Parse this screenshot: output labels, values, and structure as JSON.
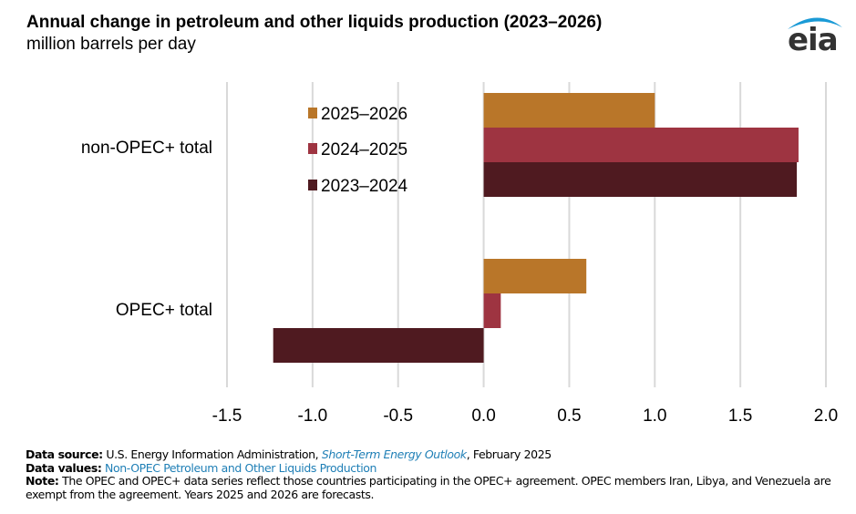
{
  "header": {
    "title": "Annual change in petroleum and other liquids production (2023–2026)",
    "subtitle": "million barrels per day",
    "logo_text": "eia",
    "logo_icon": "eia-arc-logo"
  },
  "colors": {
    "s2025_2026": "#b97629",
    "s2024_2025": "#9e3441",
    "s2023_2024": "#4f1a20",
    "grid": "#d9d9d9",
    "link": "#1f7fb6",
    "logo_arc": "#1a9ad6"
  },
  "chart_data": {
    "type": "bar",
    "orientation": "horizontal",
    "title": "Annual change in petroleum and other liquids production (2023–2026)",
    "subtitle": "million barrels per day",
    "xlabel": "",
    "ylabel": "",
    "categories": [
      "non-OPEC+ total",
      "OPEC+ total"
    ],
    "series": [
      {
        "name": "2025–2026",
        "color": "#b97629",
        "values": [
          1.0,
          0.6
        ]
      },
      {
        "name": "2024–2025",
        "color": "#9e3441",
        "values": [
          1.84,
          0.1
        ]
      },
      {
        "name": "2023–2024",
        "color": "#4f1a20",
        "values": [
          1.83,
          -1.23
        ]
      }
    ],
    "xlim": [
      -1.5,
      2.0
    ],
    "xticks": [
      -1.5,
      -1.0,
      -0.5,
      0.0,
      0.5,
      1.0,
      1.5,
      2.0
    ],
    "xtick_labels": [
      "-1.5",
      "-1.0",
      "-0.5",
      "0.0",
      "0.5",
      "1.0",
      "1.5",
      "2.0"
    ],
    "grid": "vertical",
    "legend_position": "top-center (inside plot, left of non-OPEC+ bars)"
  },
  "footer": {
    "source_label": "Data source:",
    "source_text_1": "U.S. Energy Information Administration,",
    "source_link": "Short-Term Energy Outlook",
    "source_text_2": ", February 2025",
    "values_label": "Data values:",
    "values_link": "Non-OPEC Petroleum and Other Liquids Production",
    "note_label": "Note:",
    "note_text": "The OPEC and OPEC+ data series reflect those countries participating in the OPEC+ agreement. OPEC members Iran, Libya, and Venezuela are exempt from the agreement. Years 2025 and 2026 are forecasts."
  }
}
